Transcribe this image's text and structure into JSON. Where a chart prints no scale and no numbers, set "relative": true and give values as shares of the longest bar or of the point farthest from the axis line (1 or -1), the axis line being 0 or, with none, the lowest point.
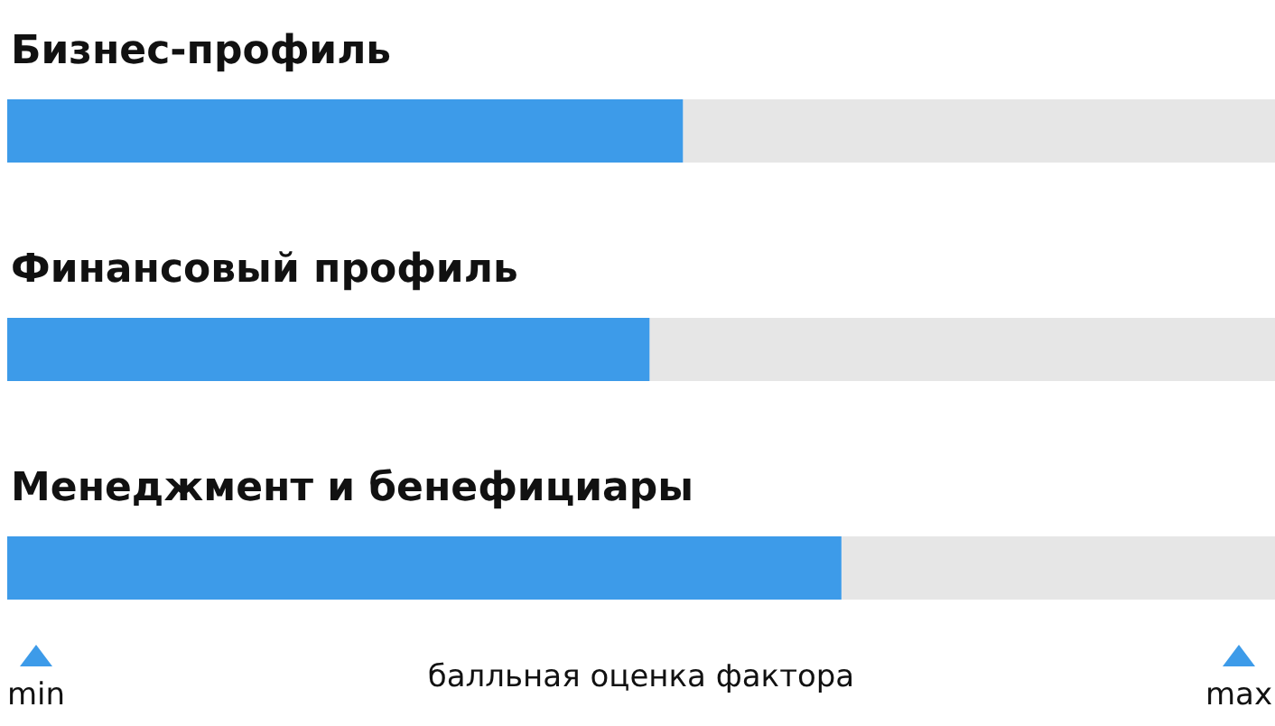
{
  "chart_data": {
    "type": "bar",
    "orientation": "horizontal",
    "relative": true,
    "categories": [
      "Бизнес-профиль",
      "Финансовый профиль",
      "Менеджмент и бенефициары"
    ],
    "values": [
      0.81,
      0.77,
      1
    ],
    "color": "#3d9be9",
    "annotations": [
      "min",
      "max"
    ],
    "xlabel": "балльная оценка фактора"
  }
}
